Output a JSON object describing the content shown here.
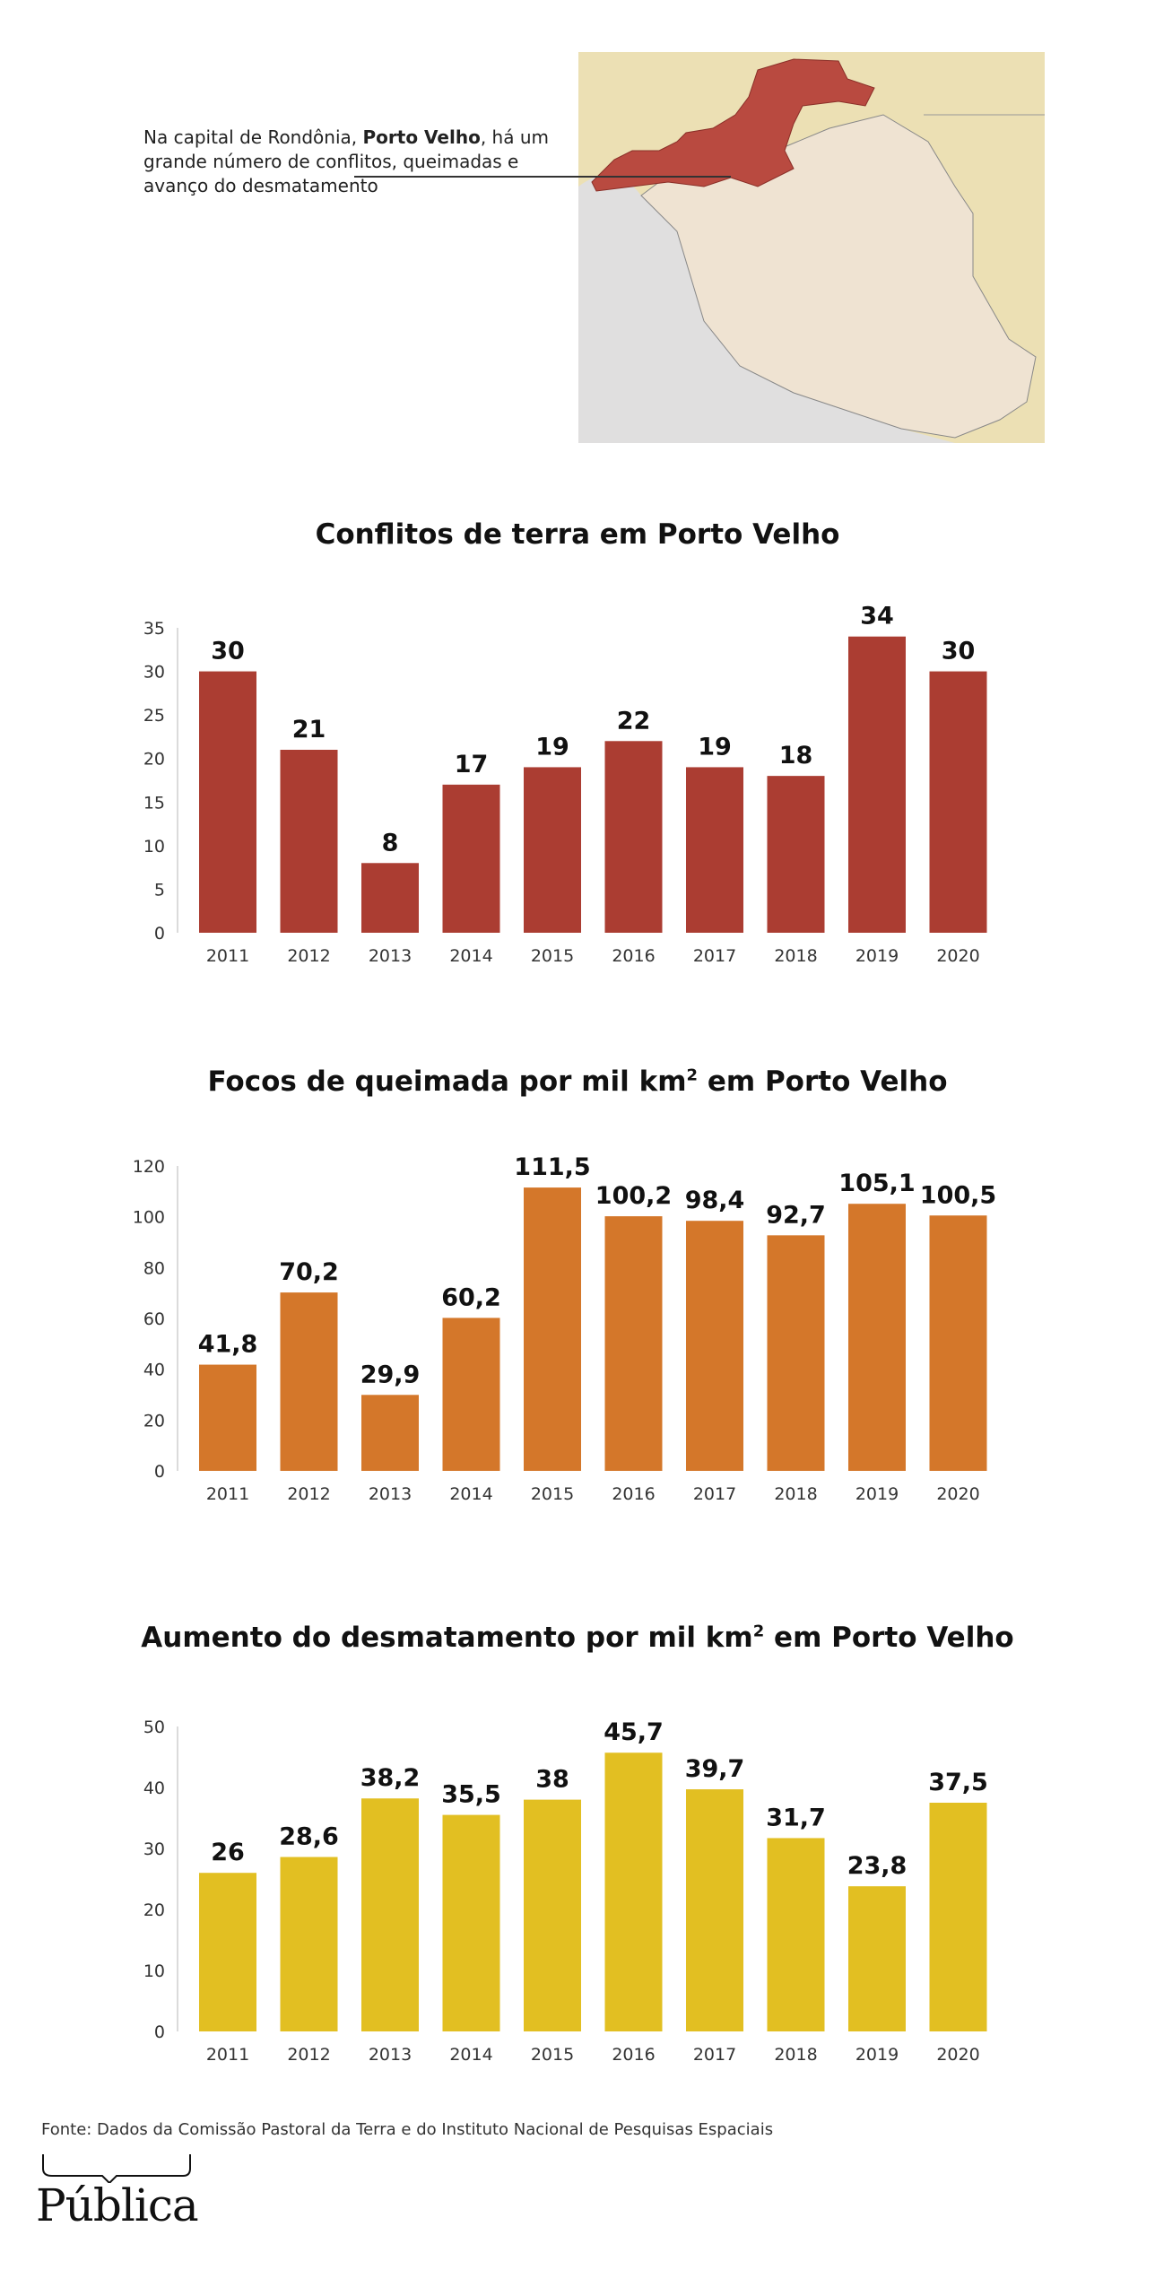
{
  "map": {
    "caption_prefix": "Na capital de Rondônia, ",
    "caption_bold": "Porto Velho",
    "caption_suffix": ", há um grande número de conflitos, queimadas e avanço do desmatamento"
  },
  "charts": [
    {
      "title": "Conflitos de terra em Porto Velho",
      "color": "#ab3d32"
    },
    {
      "title_before_sup": "Focos de queimada por mil km",
      "title_sup": "2",
      "title_after_sup": "  em Porto Velho",
      "color": "#d4772a"
    },
    {
      "title_before_sup": "Aumento do desmatamento por mil km",
      "title_sup": "2",
      "title_after_sup": " em Porto Velho",
      "color": "#e2bf22"
    }
  ],
  "chart_data": [
    {
      "type": "bar",
      "title": "Conflitos de terra em Porto Velho",
      "categories": [
        "2011",
        "2012",
        "2013",
        "2014",
        "2015",
        "2016",
        "2017",
        "2018",
        "2019",
        "2020"
      ],
      "values": [
        30,
        21,
        8,
        17,
        19,
        22,
        19,
        18,
        34,
        30
      ],
      "value_labels": [
        "30",
        "21",
        "8",
        "17",
        "19",
        "22",
        "19",
        "18",
        "34",
        "30"
      ],
      "yticks": [
        0,
        5,
        10,
        15,
        20,
        25,
        30,
        35
      ],
      "ylim": [
        0,
        35
      ],
      "grid": false
    },
    {
      "type": "bar",
      "title": "Focos de queimada por mil km2 em Porto Velho",
      "categories": [
        "2011",
        "2012",
        "2013",
        "2014",
        "2015",
        "2016",
        "2017",
        "2018",
        "2019",
        "2020"
      ],
      "values": [
        41.8,
        70.2,
        29.9,
        60.2,
        111.5,
        100.2,
        98.4,
        92.7,
        105.1,
        100.5
      ],
      "value_labels": [
        "41,8",
        "70,2",
        "29,9",
        "60,2",
        "111,5",
        "100,2",
        "98,4",
        "92,7",
        "105,1",
        "100,5"
      ],
      "yticks": [
        0,
        20,
        40,
        60,
        80,
        100,
        120
      ],
      "ylim": [
        0,
        120
      ],
      "grid": false
    },
    {
      "type": "bar",
      "title": "Aumento do desmatamento por mil km2 em Porto Velho",
      "categories": [
        "2011",
        "2012",
        "2013",
        "2014",
        "2015",
        "2016",
        "2017",
        "2018",
        "2019",
        "2020"
      ],
      "values": [
        26,
        28.6,
        38.2,
        35.5,
        38,
        45.7,
        39.7,
        31.7,
        23.8,
        37.5
      ],
      "value_labels": [
        "26",
        "28,6",
        "38,2",
        "35,5",
        "38",
        "45,7",
        "39,7",
        "31,7",
        "23,8",
        "37,5"
      ],
      "yticks": [
        0,
        10,
        20,
        30,
        40,
        50
      ],
      "ylim": [
        0,
        50
      ],
      "grid": false
    }
  ],
  "footer": {
    "source": "Fonte: Dados da Comissão Pastoral da Terra e do Instituto Nacional de Pesquisas Espaciais",
    "logo_text": "Pública"
  }
}
